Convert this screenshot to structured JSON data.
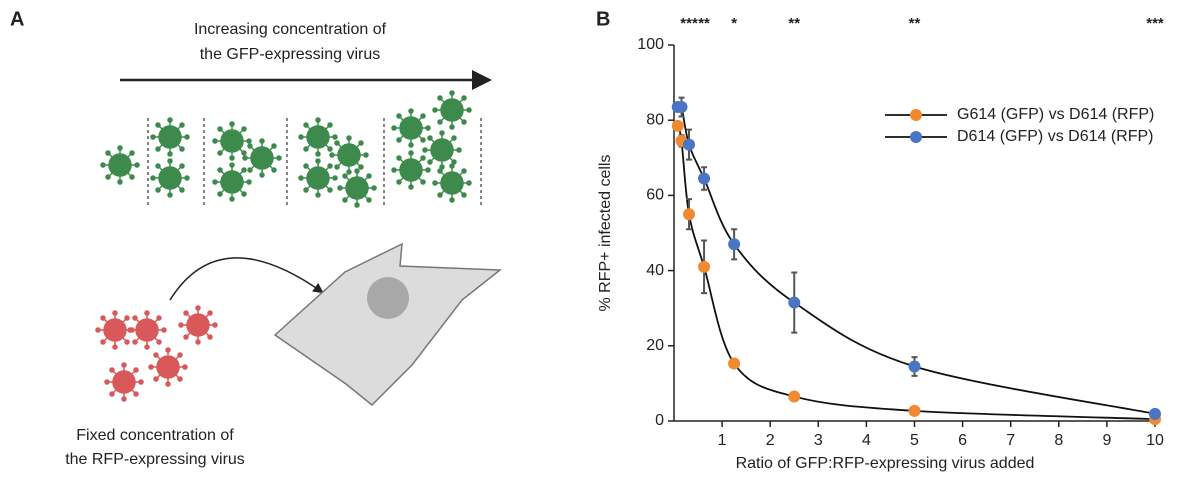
{
  "panel_a": {
    "label": "A",
    "top_text": [
      "Increasing concentration of",
      "the GFP-expressing virus"
    ],
    "bottom_text": [
      "Fixed concentration of",
      "the RFP-expressing virus"
    ]
  },
  "chart_data": {
    "type": "line",
    "label": "B",
    "xlabel": "Ratio of GFP:RFP-expressing virus added",
    "ylabel": "% RFP+ infected cells",
    "xlim": [
      0,
      10
    ],
    "ylim": [
      0,
      100
    ],
    "xticks": [
      1,
      2,
      3,
      4,
      5,
      6,
      7,
      8,
      9,
      10
    ],
    "yticks": [
      0,
      20,
      40,
      60,
      80,
      100
    ],
    "x": [
      0.078,
      0.156,
      0.3125,
      0.625,
      1.25,
      2.5,
      5,
      10
    ],
    "series": [
      {
        "name": "G614 (GFP) vs D614 (RFP)",
        "color": "#f0892f",
        "values": [
          78.5,
          74.5,
          55,
          41,
          15.3,
          6.5,
          2.7,
          0.5
        ],
        "errors": [
          1,
          1.5,
          4,
          7,
          0.5,
          0.5,
          0.5,
          0.3
        ]
      },
      {
        "name": "D614 (GFP) vs D614 (RFP)",
        "color": "#4a74c4",
        "values": [
          83.5,
          83.5,
          73.5,
          64.5,
          47,
          31.5,
          14.5,
          1.9
        ],
        "errors": [
          1,
          2.5,
          4,
          3,
          4,
          8,
          2.5,
          0.5
        ]
      }
    ],
    "annotations": [
      {
        "x": 0.3125,
        "text": "***"
      },
      {
        "x": 0.625,
        "text": "**"
      },
      {
        "x": 1.25,
        "text": "*"
      },
      {
        "x": 2.5,
        "text": "**"
      },
      {
        "x": 5,
        "text": "**"
      },
      {
        "x": 10,
        "text": "***"
      }
    ],
    "legend": "upper right"
  }
}
